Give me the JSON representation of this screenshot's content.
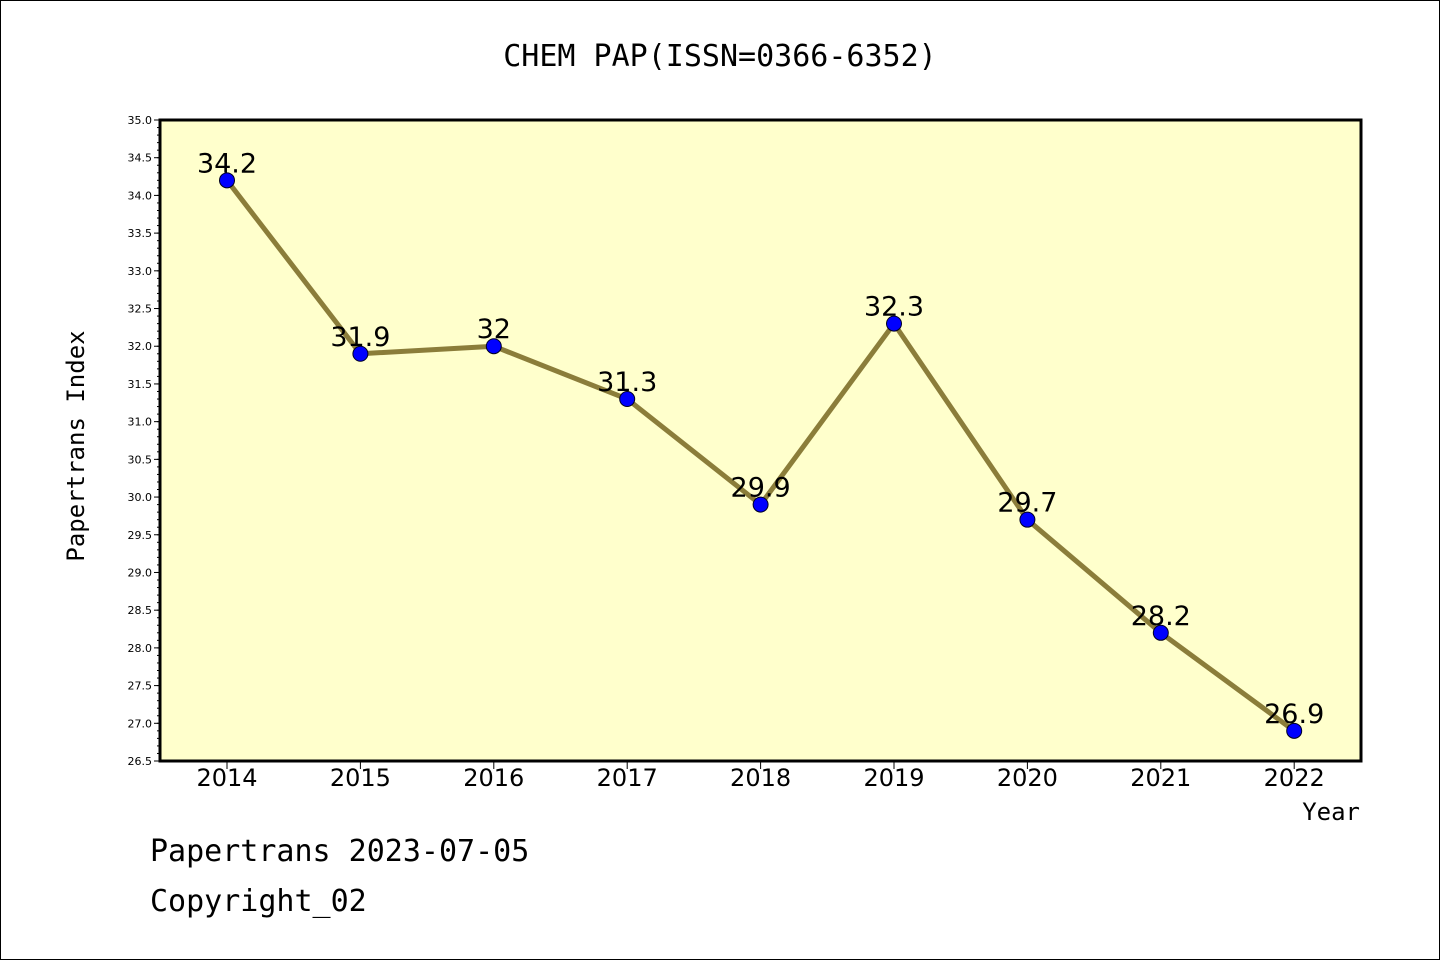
{
  "chart_data": {
    "type": "line",
    "title": "CHEM PAP(ISSN=0366-6352)",
    "xlabel": "Year",
    "ylabel": "Papertrans Index",
    "categories": [
      "2014",
      "2015",
      "2016",
      "2017",
      "2018",
      "2019",
      "2020",
      "2021",
      "2022"
    ],
    "values": [
      34.2,
      31.9,
      32,
      31.3,
      29.9,
      32.3,
      29.7,
      28.2,
      26.9
    ],
    "data_labels": [
      "34.2",
      "31.9",
      "32",
      "31.3",
      "29.9",
      "32.3",
      "29.7",
      "28.2",
      "26.9"
    ],
    "ylim": [
      26.5,
      35.0
    ],
    "yticks": [
      "26.5",
      "27.0",
      "27.5",
      "28.0",
      "28.5",
      "29.0",
      "29.5",
      "30.0",
      "30.5",
      "31.0",
      "31.5",
      "32.0",
      "32.5",
      "33.0",
      "33.5",
      "34.0",
      "34.5",
      "35.0"
    ],
    "grid": false,
    "colors": {
      "plot_background": "#ffffcc",
      "line": "#8b7d3a",
      "marker": "#0000ff"
    }
  },
  "footer": {
    "line1": "Papertrans 2023-07-05",
    "line2": "Copyright_02"
  }
}
